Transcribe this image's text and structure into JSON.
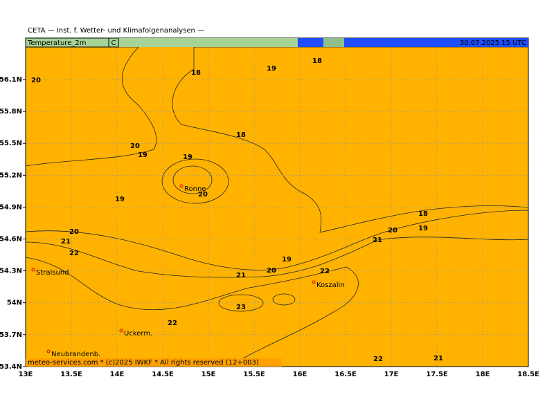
{
  "header": {
    "title": "CETA — Inst. f. Wetter- und Klimafolgenanalysen —",
    "variable": "Temperature_2m",
    "unit": "C",
    "valid": "30.07.2025 15 UTC"
  },
  "footer": "meteo-services.com * (c)2025 IWKF * All rights reserved (12+003)",
  "lat_labels": [
    "56.1N",
    "55.8N",
    "55.5N",
    "55.2N",
    "54.9N",
    "54.6N",
    "54.3N",
    "54N",
    "53.7N",
    "53.4N"
  ],
  "lon_labels": [
    "13E",
    "13.5E",
    "14E",
    "14.5E",
    "15E",
    "15.5E",
    "16E",
    "16.5E",
    "17E",
    "17.5E",
    "18E",
    "18.5E"
  ],
  "contour_labels": [
    "20",
    "18",
    "19",
    "18",
    "18",
    "20",
    "19",
    "19",
    "20",
    "19",
    "18",
    "20",
    "19",
    "20",
    "21",
    "22",
    "21",
    "19",
    "20",
    "22",
    "21",
    "23",
    "22",
    "22",
    "21"
  ],
  "cities": [
    "Ronne",
    "Stralsund",
    "Koszalin",
    "Uckerm.",
    "Neubrandenb."
  ]
}
